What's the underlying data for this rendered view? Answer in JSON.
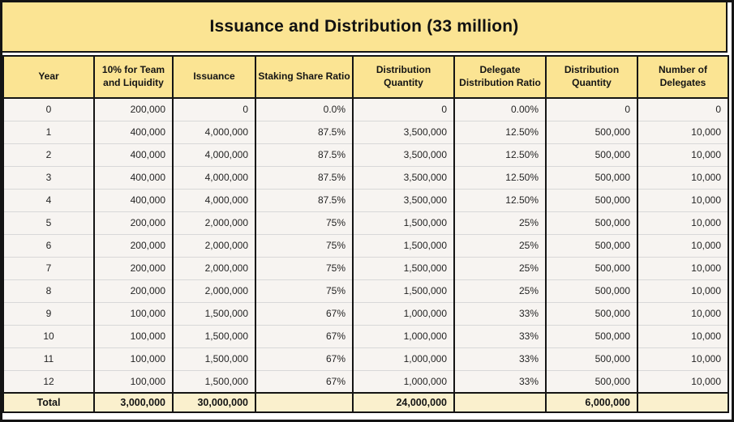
{
  "title": "Issuance and Distribution (33 million)",
  "table": {
    "columns": [
      "Year",
      "10% for Team and Liquidity",
      "Issuance",
      "Staking Share Ratio",
      "Distribution Quantity",
      "Delegate Distribution Ratio",
      "Distribution Quantity",
      "Number of Delegates"
    ],
    "rows": [
      [
        "0",
        "200,000",
        "0",
        "0.0%",
        "0",
        "0.00%",
        "0",
        "0"
      ],
      [
        "1",
        "400,000",
        "4,000,000",
        "87.5%",
        "3,500,000",
        "12.50%",
        "500,000",
        "10,000"
      ],
      [
        "2",
        "400,000",
        "4,000,000",
        "87.5%",
        "3,500,000",
        "12.50%",
        "500,000",
        "10,000"
      ],
      [
        "3",
        "400,000",
        "4,000,000",
        "87.5%",
        "3,500,000",
        "12.50%",
        "500,000",
        "10,000"
      ],
      [
        "4",
        "400,000",
        "4,000,000",
        "87.5%",
        "3,500,000",
        "12.50%",
        "500,000",
        "10,000"
      ],
      [
        "5",
        "200,000",
        "2,000,000",
        "75%",
        "1,500,000",
        "25%",
        "500,000",
        "10,000"
      ],
      [
        "6",
        "200,000",
        "2,000,000",
        "75%",
        "1,500,000",
        "25%",
        "500,000",
        "10,000"
      ],
      [
        "7",
        "200,000",
        "2,000,000",
        "75%",
        "1,500,000",
        "25%",
        "500,000",
        "10,000"
      ],
      [
        "8",
        "200,000",
        "2,000,000",
        "75%",
        "1,500,000",
        "25%",
        "500,000",
        "10,000"
      ],
      [
        "9",
        "100,000",
        "1,500,000",
        "67%",
        "1,000,000",
        "33%",
        "500,000",
        "10,000"
      ],
      [
        "10",
        "100,000",
        "1,500,000",
        "67%",
        "1,000,000",
        "33%",
        "500,000",
        "10,000"
      ],
      [
        "11",
        "100,000",
        "1,500,000",
        "67%",
        "1,000,000",
        "33%",
        "500,000",
        "10,000"
      ],
      [
        "12",
        "100,000",
        "1,500,000",
        "67%",
        "1,000,000",
        "33%",
        "500,000",
        "10,000"
      ]
    ],
    "total_row": [
      "Total",
      "3,000,000",
      "30,000,000",
      "",
      "24,000,000",
      "",
      "6,000,000",
      ""
    ]
  },
  "colors": {
    "header_bg": "#FBE493",
    "total_row_bg": "#FAF0CD",
    "data_row_bg": "#F7F4F1",
    "border": "#141414",
    "row_separator": "#D8D8D8",
    "text": "#242424"
  },
  "chart_data": {
    "type": "table",
    "title": "Issuance and Distribution (33 million)",
    "columns": [
      "Year",
      "10% for Team and Liquidity",
      "Issuance",
      "Staking Share Ratio",
      "Distribution Quantity",
      "Delegate Distribution Ratio",
      "Distribution Quantity",
      "Number of Delegates"
    ],
    "rows": [
      [
        0,
        200000,
        0,
        "0.0%",
        0,
        "0.00%",
        0,
        0
      ],
      [
        1,
        400000,
        4000000,
        "87.5%",
        3500000,
        "12.50%",
        500000,
        10000
      ],
      [
        2,
        400000,
        4000000,
        "87.5%",
        3500000,
        "12.50%",
        500000,
        10000
      ],
      [
        3,
        400000,
        4000000,
        "87.5%",
        3500000,
        "12.50%",
        500000,
        10000
      ],
      [
        4,
        400000,
        4000000,
        "87.5%",
        3500000,
        "12.50%",
        500000,
        10000
      ],
      [
        5,
        200000,
        2000000,
        "75%",
        1500000,
        "25%",
        500000,
        10000
      ],
      [
        6,
        200000,
        2000000,
        "75%",
        1500000,
        "25%",
        500000,
        10000
      ],
      [
        7,
        200000,
        2000000,
        "75%",
        1500000,
        "25%",
        500000,
        10000
      ],
      [
        8,
        200000,
        2000000,
        "75%",
        1500000,
        "25%",
        500000,
        10000
      ],
      [
        9,
        100000,
        1500000,
        "67%",
        1000000,
        "33%",
        500000,
        10000
      ],
      [
        10,
        100000,
        1500000,
        "67%",
        1000000,
        "33%",
        500000,
        10000
      ],
      [
        11,
        100000,
        1500000,
        "67%",
        1000000,
        "33%",
        500000,
        10000
      ],
      [
        12,
        100000,
        1500000,
        "67%",
        1000000,
        "33%",
        500000,
        10000
      ]
    ],
    "totals": {
      "team_and_liquidity": 3000000,
      "issuance": 30000000,
      "staking_distribution_quantity": 24000000,
      "delegate_distribution_quantity": 6000000
    }
  }
}
